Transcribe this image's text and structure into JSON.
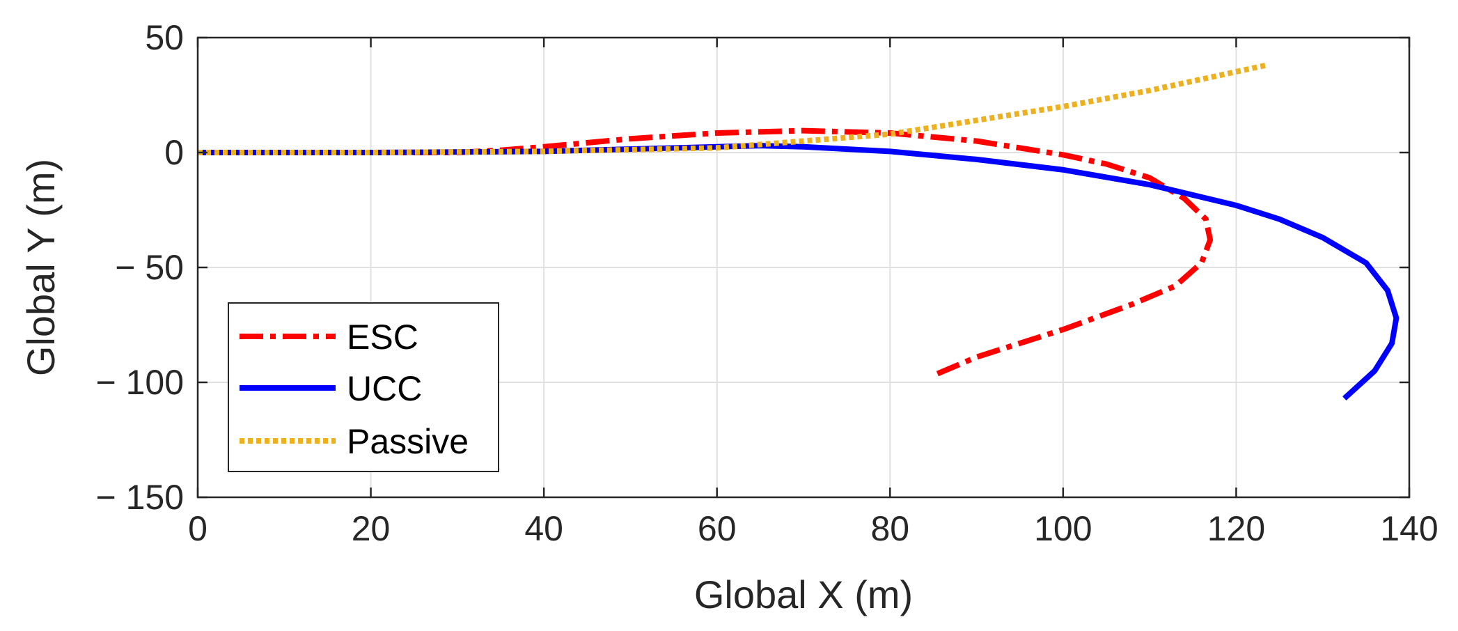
{
  "chart_data": {
    "type": "line",
    "xlabel": "Global X (m)",
    "ylabel": "Global Y (m)",
    "xlim": [
      0,
      140
    ],
    "ylim": [
      -150,
      50
    ],
    "xticks": [
      0,
      20,
      40,
      60,
      80,
      100,
      120,
      140
    ],
    "xtick_labels": [
      "0",
      "20",
      "40",
      "60",
      "80",
      "100",
      "120",
      "140"
    ],
    "yticks": [
      50,
      0,
      -50,
      -100,
      -150
    ],
    "ytick_labels": [
      "50",
      "0",
      "− 50",
      "− 100",
      "− 150"
    ],
    "grid": true,
    "legend_position": "bottom-left",
    "series": [
      {
        "name": "ESC",
        "color": "#ff0000",
        "style": "dash-dot",
        "x": [
          0,
          20,
          30,
          35,
          40,
          50,
          60,
          70,
          80,
          90,
          100,
          105,
          110,
          114,
          116.5,
          117,
          116,
          113,
          108,
          100,
          95,
          90,
          85
        ],
        "y": [
          0,
          0,
          0,
          1,
          2.5,
          6,
          8.5,
          9.5,
          8.5,
          5,
          -1,
          -5,
          -11,
          -20,
          -29,
          -38,
          -48,
          -58,
          -66,
          -77,
          -83,
          -89,
          -97
        ]
      },
      {
        "name": "UCC",
        "color": "#0000ff",
        "style": "solid",
        "x": [
          0,
          20,
          40,
          50,
          60,
          65,
          70,
          80,
          90,
          100,
          110,
          120,
          125,
          130,
          135,
          137.5,
          138.5,
          138,
          136,
          132.5
        ],
        "y": [
          0,
          0,
          0.5,
          1.5,
          2.5,
          3,
          2.5,
          0.5,
          -3,
          -7.5,
          -14,
          -23,
          -29,
          -37,
          -48,
          -60,
          -72,
          -83,
          -95,
          -107
        ]
      },
      {
        "name": "Passive",
        "color": "#edb120",
        "style": "dotted",
        "x": [
          0,
          20,
          40,
          60,
          80,
          100,
          110,
          123.5
        ],
        "y": [
          0,
          0,
          0.5,
          2,
          8,
          20,
          27,
          38
        ]
      }
    ]
  }
}
